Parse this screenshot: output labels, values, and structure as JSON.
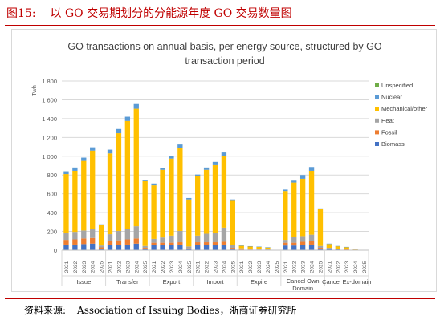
{
  "figure": {
    "number": "图15:",
    "title": "以 GO 交易期划分的分能源年度 GO 交易数量图",
    "source_label": "资料来源:",
    "source_text": "Association of Issuing Bodies，浙商证券研究所"
  },
  "colors": {
    "header": "#c00000",
    "Biomass": "#4472c4",
    "Fossil": "#ed7d31",
    "Heat": "#a5a5a5",
    "Mechanical/other": "#ffc000",
    "Nuclear": "#5b9bd5",
    "Unspecified": "#70ad47"
  },
  "chart_data": {
    "type": "bar",
    "stacked": true,
    "title_lines": [
      "GO transactions on annual basis, per energy source, structured by GO",
      "transaction period"
    ],
    "ylabel": "Twh",
    "xlabel": "",
    "ylim": [
      0,
      1800
    ],
    "yticks": [
      0,
      200,
      400,
      600,
      800,
      1000,
      1200,
      1400,
      1600,
      1800
    ],
    "ytick_labels": [
      "0",
      "200",
      "400",
      "600",
      "800",
      "1 000",
      "1 200",
      "1 400",
      "1 600",
      "1 800"
    ],
    "grid": true,
    "legend": "right",
    "groups": [
      "Issue",
      "Transfer",
      "Export",
      "Import",
      "Expire",
      "Cancel Own Domain",
      "Cancel Ex-domain"
    ],
    "years": [
      "2021",
      "2022",
      "2023",
      "2024",
      "2025"
    ],
    "series": [
      {
        "name": "Biomass",
        "values": [
          60,
          60,
          65,
          70,
          15,
          55,
          55,
          60,
          70,
          15,
          55,
          55,
          55,
          60,
          15,
          55,
          55,
          55,
          60,
          15,
          5,
          4,
          4,
          3,
          1,
          50,
          50,
          55,
          60,
          15,
          10,
          8,
          5,
          3,
          1
        ]
      },
      {
        "name": "Fossil",
        "values": [
          50,
          55,
          60,
          60,
          15,
          45,
          50,
          55,
          55,
          10,
          25,
          25,
          25,
          25,
          5,
          30,
          30,
          30,
          30,
          10,
          3,
          3,
          2,
          2,
          0,
          30,
          30,
          35,
          35,
          10,
          5,
          4,
          3,
          2,
          0
        ]
      },
      {
        "name": "Heat",
        "values": [
          70,
          80,
          85,
          100,
          20,
          70,
          100,
          110,
          130,
          20,
          40,
          55,
          75,
          120,
          20,
          70,
          90,
          100,
          150,
          30,
          12,
          10,
          8,
          5,
          2,
          30,
          60,
          60,
          70,
          20,
          10,
          5,
          5,
          2,
          0
        ]
      },
      {
        "name": "Mechanical/other",
        "values": [
          630,
          650,
          740,
          830,
          220,
          860,
          1040,
          1150,
          1250,
          690,
          570,
          720,
          820,
          880,
          500,
          630,
          680,
          720,
          760,
          470,
          28,
          25,
          23,
          20,
          0,
          520,
          580,
          610,
          680,
          390,
          40,
          25,
          20,
          5,
          3
        ]
      },
      {
        "name": "Nuclear",
        "values": [
          30,
          35,
          35,
          35,
          5,
          40,
          45,
          45,
          50,
          15,
          20,
          20,
          30,
          40,
          15,
          20,
          25,
          35,
          40,
          15,
          2,
          1,
          1,
          1,
          0,
          15,
          20,
          40,
          40,
          10,
          5,
          3,
          2,
          1,
          0
        ]
      },
      {
        "name": "Unspecified",
        "values": [
          0,
          0,
          0,
          0,
          0,
          0,
          0,
          0,
          0,
          0,
          0,
          0,
          0,
          0,
          0,
          0,
          0,
          0,
          0,
          0,
          0,
          0,
          0,
          0,
          0,
          0,
          0,
          0,
          0,
          0,
          0,
          0,
          0,
          0,
          0
        ]
      }
    ],
    "legend_order": [
      "Unspecified",
      "Nuclear",
      "Mechanical/other",
      "Heat",
      "Fossil",
      "Biomass"
    ]
  }
}
